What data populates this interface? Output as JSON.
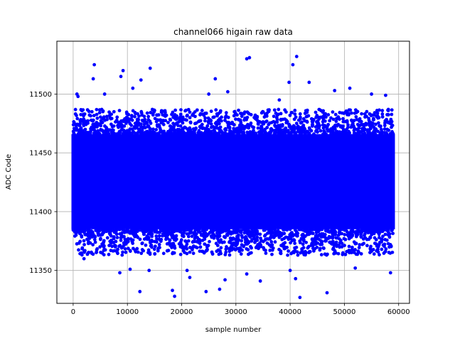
{
  "chart_data": {
    "type": "scatter",
    "title": "channel066 higain raw data",
    "xlabel": "sample number",
    "ylabel": "ADC Code",
    "xlim": [
      -3000,
      62000
    ],
    "ylim": [
      11322,
      11545
    ],
    "xticks": [
      0,
      10000,
      20000,
      30000,
      40000,
      50000,
      60000
    ],
    "xtick_labels": [
      "0",
      "10000",
      "20000",
      "30000",
      "40000",
      "50000",
      "60000"
    ],
    "yticks": [
      11350,
      11400,
      11450,
      11500
    ],
    "ytick_labels": [
      "11350",
      "11400",
      "11450",
      "11500"
    ],
    "grid": true,
    "color": "#0000ff",
    "series": [
      {
        "name": "",
        "x_range": [
          0,
          59000
        ],
        "dense_band": [
          11385,
          11466
        ],
        "spread_band": [
          11363,
          11487
        ],
        "outliers": [
          [
            700,
            11500
          ],
          [
            900,
            11498
          ],
          [
            3900,
            11525
          ],
          [
            3700,
            11513
          ],
          [
            5800,
            11500
          ],
          [
            9200,
            11520
          ],
          [
            8800,
            11515
          ],
          [
            12500,
            11512
          ],
          [
            14200,
            11522
          ],
          [
            11000,
            11505
          ],
          [
            26200,
            11513
          ],
          [
            25000,
            11500
          ],
          [
            28500,
            11502
          ],
          [
            32000,
            11530
          ],
          [
            32500,
            11531
          ],
          [
            38000,
            11495
          ],
          [
            39800,
            11510
          ],
          [
            40500,
            11525
          ],
          [
            41200,
            11532
          ],
          [
            43500,
            11510
          ],
          [
            48200,
            11503
          ],
          [
            51000,
            11505
          ],
          [
            55000,
            11500
          ],
          [
            57600,
            11499
          ],
          [
            8600,
            11348
          ],
          [
            10500,
            11351
          ],
          [
            12300,
            11332
          ],
          [
            14000,
            11350
          ],
          [
            18300,
            11333
          ],
          [
            18700,
            11328
          ],
          [
            21000,
            11350
          ],
          [
            21500,
            11344
          ],
          [
            24500,
            11332
          ],
          [
            27000,
            11334
          ],
          [
            28000,
            11342
          ],
          [
            32000,
            11347
          ],
          [
            34500,
            11341
          ],
          [
            40000,
            11350
          ],
          [
            41000,
            11343
          ],
          [
            41800,
            11327
          ],
          [
            46800,
            11331
          ],
          [
            52000,
            11352
          ],
          [
            58500,
            11348
          ],
          [
            2000,
            11360
          ]
        ]
      }
    ]
  }
}
